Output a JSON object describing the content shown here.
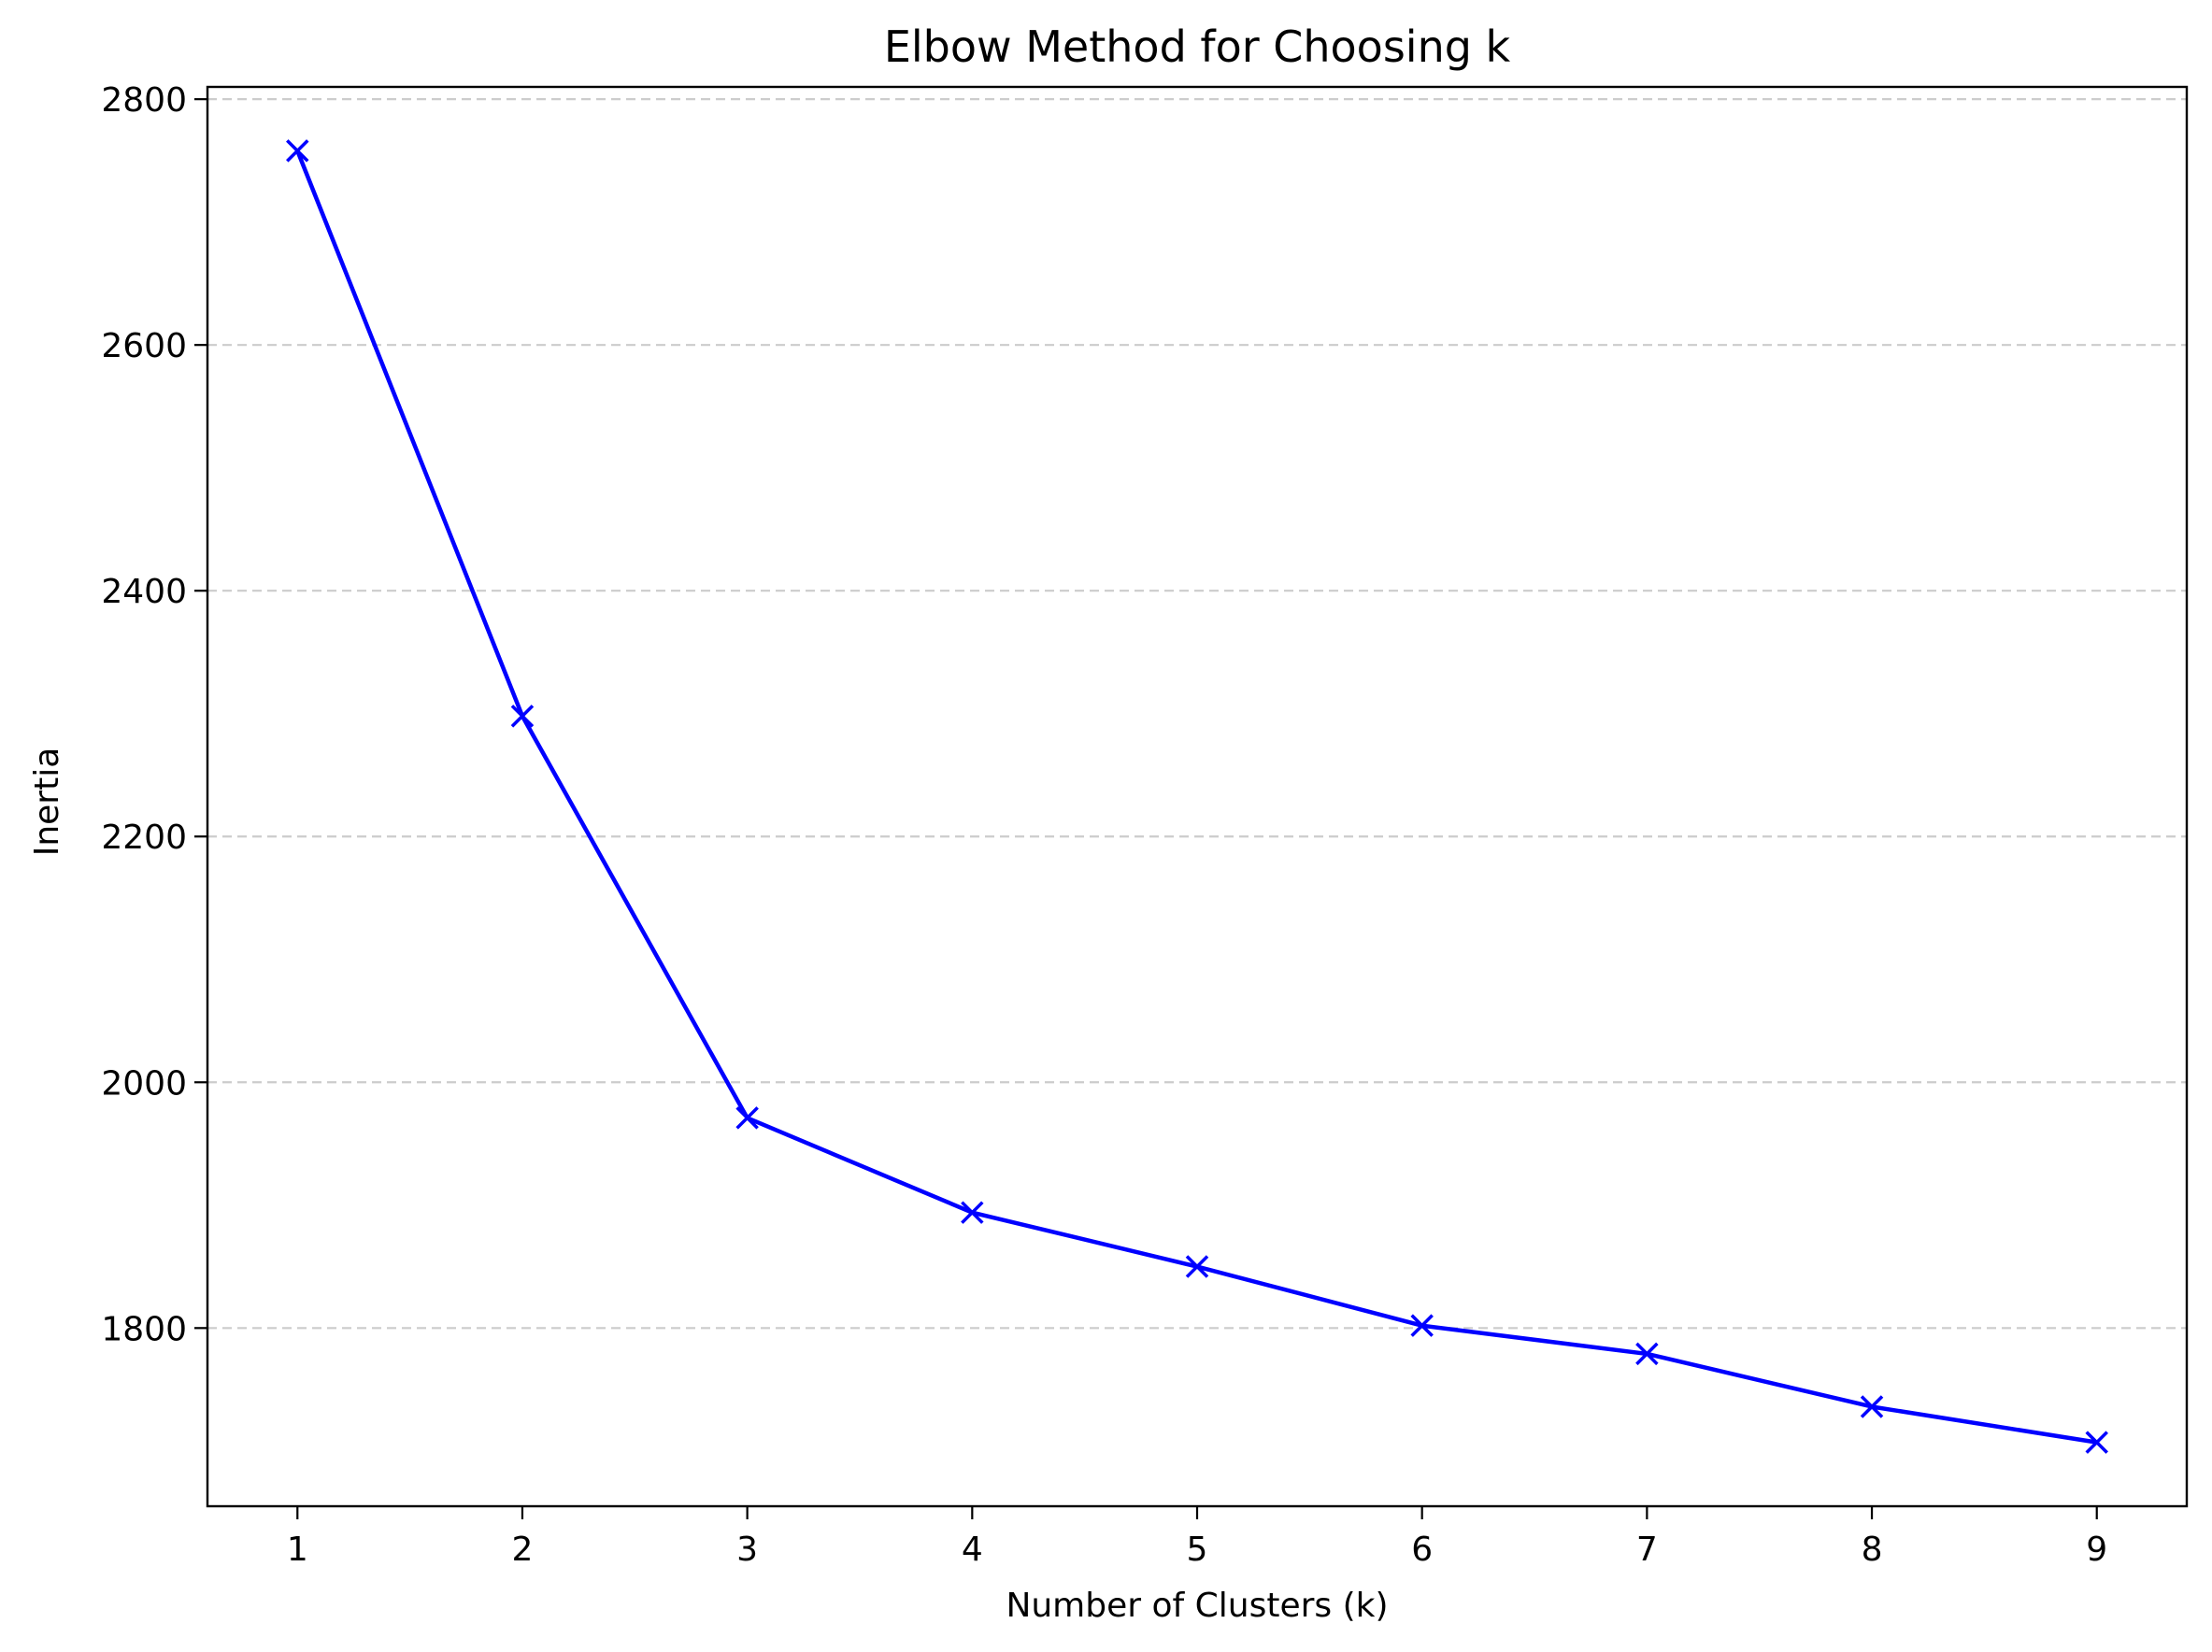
{
  "chart_data": {
    "type": "line",
    "title": "Elbow Method for Choosing k",
    "xlabel": "Number of Clusters (k)",
    "ylabel": "Inertia",
    "x": [
      1,
      2,
      3,
      4,
      5,
      6,
      7,
      8,
      9
    ],
    "x_ticks": [
      "1",
      "2",
      "3",
      "4",
      "5",
      "6",
      "7",
      "8",
      "9"
    ],
    "y_ticks": [
      "1800",
      "2000",
      "2200",
      "2400",
      "2600",
      "2800"
    ],
    "xlim": [
      0.6,
      9.4
    ],
    "ylim": [
      1655,
      2810
    ],
    "grid": "y-dashed",
    "series": [
      {
        "marker": "x",
        "color": "#0000ff",
        "values": [
          2758,
          2298,
          1971,
          1894,
          1850,
          1802,
          1779,
          1736,
          1707
        ]
      }
    ],
    "colors": {
      "line": "#0000ff",
      "grid": "#cccccc",
      "axis": "#000000"
    }
  }
}
